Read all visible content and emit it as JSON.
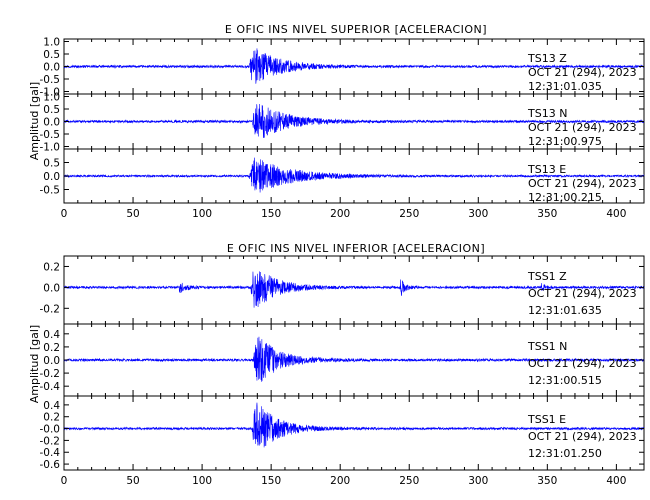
{
  "colors": {
    "trace": "#0000ff",
    "axis": "#000000",
    "background": "#ffffff"
  },
  "chart_data": [
    {
      "type": "line",
      "title": "E OFIC INS NIVEL SUPERIOR [ACELERACION]",
      "ylabel": "Amplitud [gal]",
      "xlim": [
        0,
        420
      ],
      "xticks": [
        0,
        50,
        100,
        150,
        200,
        250,
        300,
        350,
        400
      ],
      "panels": [
        {
          "ylim": [
            -1.1,
            1.1
          ],
          "yticks": [
            1.0,
            0.5,
            0.0,
            -0.5,
            -1.0
          ],
          "ytick_labels": [
            "1.0",
            "0.5",
            "0.0",
            "-0.5",
            "-1.0"
          ],
          "annotation": [
            "TS13   Z",
            "OCT 21 (294), 2023",
            "12:31:01.035"
          ],
          "series": {
            "noise": 0.05,
            "events": [
              {
                "t0": 134,
                "peak": 1.0,
                "decay": 18,
                "rise": 3
              }
            ]
          }
        },
        {
          "ylim": [
            -1.1,
            1.1
          ],
          "yticks": [
            1.0,
            0.5,
            0.0,
            -0.5,
            -1.0
          ],
          "ytick_labels": [
            "1.0",
            "0.5",
            "0.0",
            "-0.5",
            "-1.0"
          ],
          "annotation": [
            "TS13   N",
            "OCT 21 (294), 2023",
            "12:31:00.975"
          ],
          "series": {
            "noise": 0.05,
            "events": [
              {
                "t0": 136,
                "peak": 1.0,
                "decay": 20,
                "rise": 4
              }
            ]
          }
        },
        {
          "ylim": [
            -1.0,
            1.0
          ],
          "yticks": [
            0.5,
            0.0,
            -0.5
          ],
          "ytick_labels": [
            "0.5",
            "0.0",
            "-0.5"
          ],
          "annotation": [
            "TS13   E",
            "OCT 21 (294), 2023",
            "12:31:00.215"
          ],
          "series": {
            "noise": 0.04,
            "events": [
              {
                "t0": 134,
                "peak": 0.85,
                "decay": 25,
                "rise": 4
              }
            ]
          }
        }
      ]
    },
    {
      "type": "line",
      "title": "E OFIC INS NIVEL INFERIOR [ACELERACION]",
      "ylabel": "Amplitud [gal]",
      "xlim": [
        0,
        420
      ],
      "xticks": [
        0,
        50,
        100,
        150,
        200,
        250,
        300,
        350,
        400
      ],
      "panels": [
        {
          "ylim": [
            -0.35,
            0.3
          ],
          "yticks": [
            0.2,
            0.0,
            -0.2
          ],
          "ytick_labels": [
            "0.2",
            "0.0",
            "-0.2"
          ],
          "annotation": [
            "TSS1   Z",
            "OCT 21 (294), 2023",
            "12:31:01.635"
          ],
          "series": {
            "noise": 0.012,
            "events": [
              {
                "t0": 83,
                "peak": 0.06,
                "decay": 5,
                "rise": 1
              },
              {
                "t0": 135,
                "peak": 0.28,
                "decay": 15,
                "rise": 3
              },
              {
                "t0": 243,
                "peak": 0.12,
                "decay": 3,
                "rise": 1
              },
              {
                "t0": 345,
                "peak": 0.05,
                "decay": 3,
                "rise": 1
              }
            ]
          }
        },
        {
          "ylim": [
            -0.55,
            0.55
          ],
          "yticks": [
            0.4,
            0.2,
            0.0,
            -0.2,
            -0.4
          ],
          "ytick_labels": [
            "0.4",
            "0.2",
            "0.0",
            "-0.2",
            "-0.4"
          ],
          "annotation": [
            "TSS1   N",
            "OCT 21 (294), 2023",
            "12:31:00.515"
          ],
          "series": {
            "noise": 0.02,
            "events": [
              {
                "t0": 137,
                "peak": 0.5,
                "decay": 15,
                "rise": 3
              }
            ]
          }
        },
        {
          "ylim": [
            -0.7,
            0.55
          ],
          "yticks": [
            0.4,
            0.2,
            0.0,
            -0.2,
            -0.4,
            -0.6
          ],
          "ytick_labels": [
            "0.4",
            "0.2",
            "-0.0",
            "-0.2",
            "-0.4",
            "-0.6"
          ],
          "annotation": [
            "TSS1   E",
            "OCT 21 (294), 2023",
            "12:31:01.250"
          ],
          "series": {
            "noise": 0.02,
            "events": [
              {
                "t0": 136,
                "peak": 0.6,
                "decay": 15,
                "rise": 3
              }
            ]
          }
        }
      ]
    }
  ]
}
